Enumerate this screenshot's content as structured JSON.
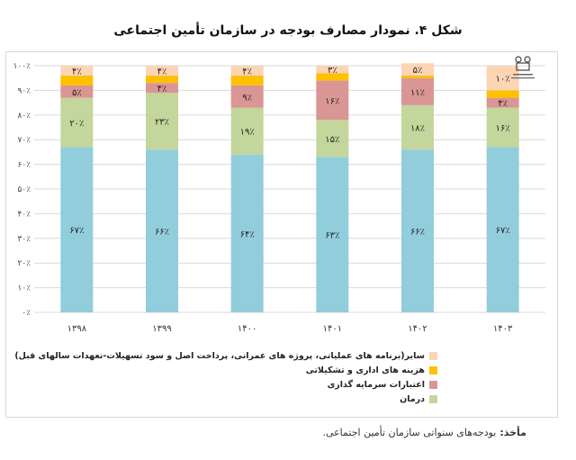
{
  "title": "شکل ۴. نمودار مصارف بودجه در سازمان تأمین اجتماعی",
  "source_label": "مأخذ:",
  "source_text": "بودجه‌های سنواتی سازمان تأمین اجتماعی.",
  "chart_data": {
    "type": "bar",
    "stacked": true,
    "categories": [
      "۱۳۹۸",
      "۱۳۹۹",
      "۱۴۰۰",
      "۱۴۰۱",
      "۱۴۰۲",
      "۱۴۰۳"
    ],
    "ylim": [
      0,
      100
    ],
    "yticks": [
      "۰٪",
      "۱۰٪",
      "۲۰٪",
      "۳۰٪",
      "۴۰٪",
      "۵۰٪",
      "۶۰٪",
      "۷۰٪",
      "۸۰٪",
      "۹۰٪",
      "۱۰۰٪"
    ],
    "grid": true,
    "legend_position": "bottom",
    "series": [
      {
        "color": "#92cddc",
        "values": [
          67,
          66,
          64,
          63,
          66,
          67
        ],
        "labels": [
          "۶۷٪",
          "۶۶٪",
          "۶۴٪",
          "۶۳٪",
          "۶۶٪",
          "۶۷٪"
        ]
      },
      {
        "name": "درمان",
        "color": "#c3d69b",
        "values": [
          20,
          23,
          19,
          15,
          18,
          16
        ],
        "labels": [
          "۲۰٪",
          "۲۳٪",
          "۱۹٪",
          "۱۵٪",
          "۱۸٪",
          "۱۶٪"
        ]
      },
      {
        "name": "اعتبارات سرمایه گذاری",
        "color": "#d99694",
        "values": [
          5,
          4,
          9,
          16,
          11,
          4
        ],
        "labels": [
          "۵٪",
          "۴٪",
          "۹٪",
          "۱۶٪",
          "۱۱٪",
          "۴٪"
        ]
      },
      {
        "name": "هزینه های اداری و تشکیلاتی",
        "color": "#ffc000",
        "values": [
          4,
          3,
          4,
          3,
          1,
          3
        ],
        "labels": [
          "",
          "",
          "",
          "",
          "",
          ""
        ]
      },
      {
        "name": "سایر(برنامه های عملیاتی، پروژه های عمرانی، پرداخت اصل و سود تسهیلات-تعهدات سالهای قبل)",
        "color": "#fcd5b5",
        "values": [
          4,
          4,
          4,
          3,
          5,
          10
        ],
        "labels": [
          "۴٪",
          "۴٪",
          "۴٪",
          "۳٪",
          "۵٪",
          "۱۰٪"
        ]
      }
    ]
  }
}
